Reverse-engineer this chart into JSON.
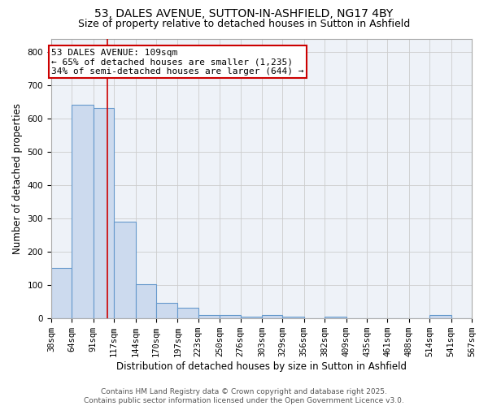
{
  "title1": "53, DALES AVENUE, SUTTON-IN-ASHFIELD, NG17 4BY",
  "title2": "Size of property relative to detached houses in Sutton in Ashfield",
  "xlabel": "Distribution of detached houses by size in Sutton in Ashfield",
  "ylabel": "Number of detached properties",
  "bin_edges": [
    38,
    64,
    91,
    117,
    144,
    170,
    197,
    223,
    250,
    276,
    303,
    329,
    356,
    382,
    409,
    435,
    461,
    488,
    514,
    541,
    567
  ],
  "bar_heights": [
    150,
    642,
    632,
    290,
    103,
    45,
    30,
    10,
    8,
    5,
    8,
    5,
    0,
    5,
    0,
    0,
    0,
    0,
    8,
    0
  ],
  "bar_facecolor": "#ccdaee",
  "bar_edgecolor": "#6699cc",
  "bar_linewidth": 0.8,
  "grid_color": "#cccccc",
  "background_color": "#eef2f8",
  "red_line_x": 109,
  "red_line_color": "#cc0000",
  "annotation_line1": "53 DALES AVENUE: 109sqm",
  "annotation_line2": "← 65% of detached houses are smaller (1,235)",
  "annotation_line3": "34% of semi-detached houses are larger (644) →",
  "annotation_box_edgecolor": "#cc0000",
  "ylim": [
    0,
    840
  ],
  "yticks": [
    0,
    100,
    200,
    300,
    400,
    500,
    600,
    700,
    800
  ],
  "footer_text": "Contains HM Land Registry data © Crown copyright and database right 2025.\nContains public sector information licensed under the Open Government Licence v3.0.",
  "title_fontsize": 10,
  "subtitle_fontsize": 9,
  "tick_label_fontsize": 7.5,
  "axis_label_fontsize": 8.5,
  "annotation_fontsize": 8,
  "footer_fontsize": 6.5
}
